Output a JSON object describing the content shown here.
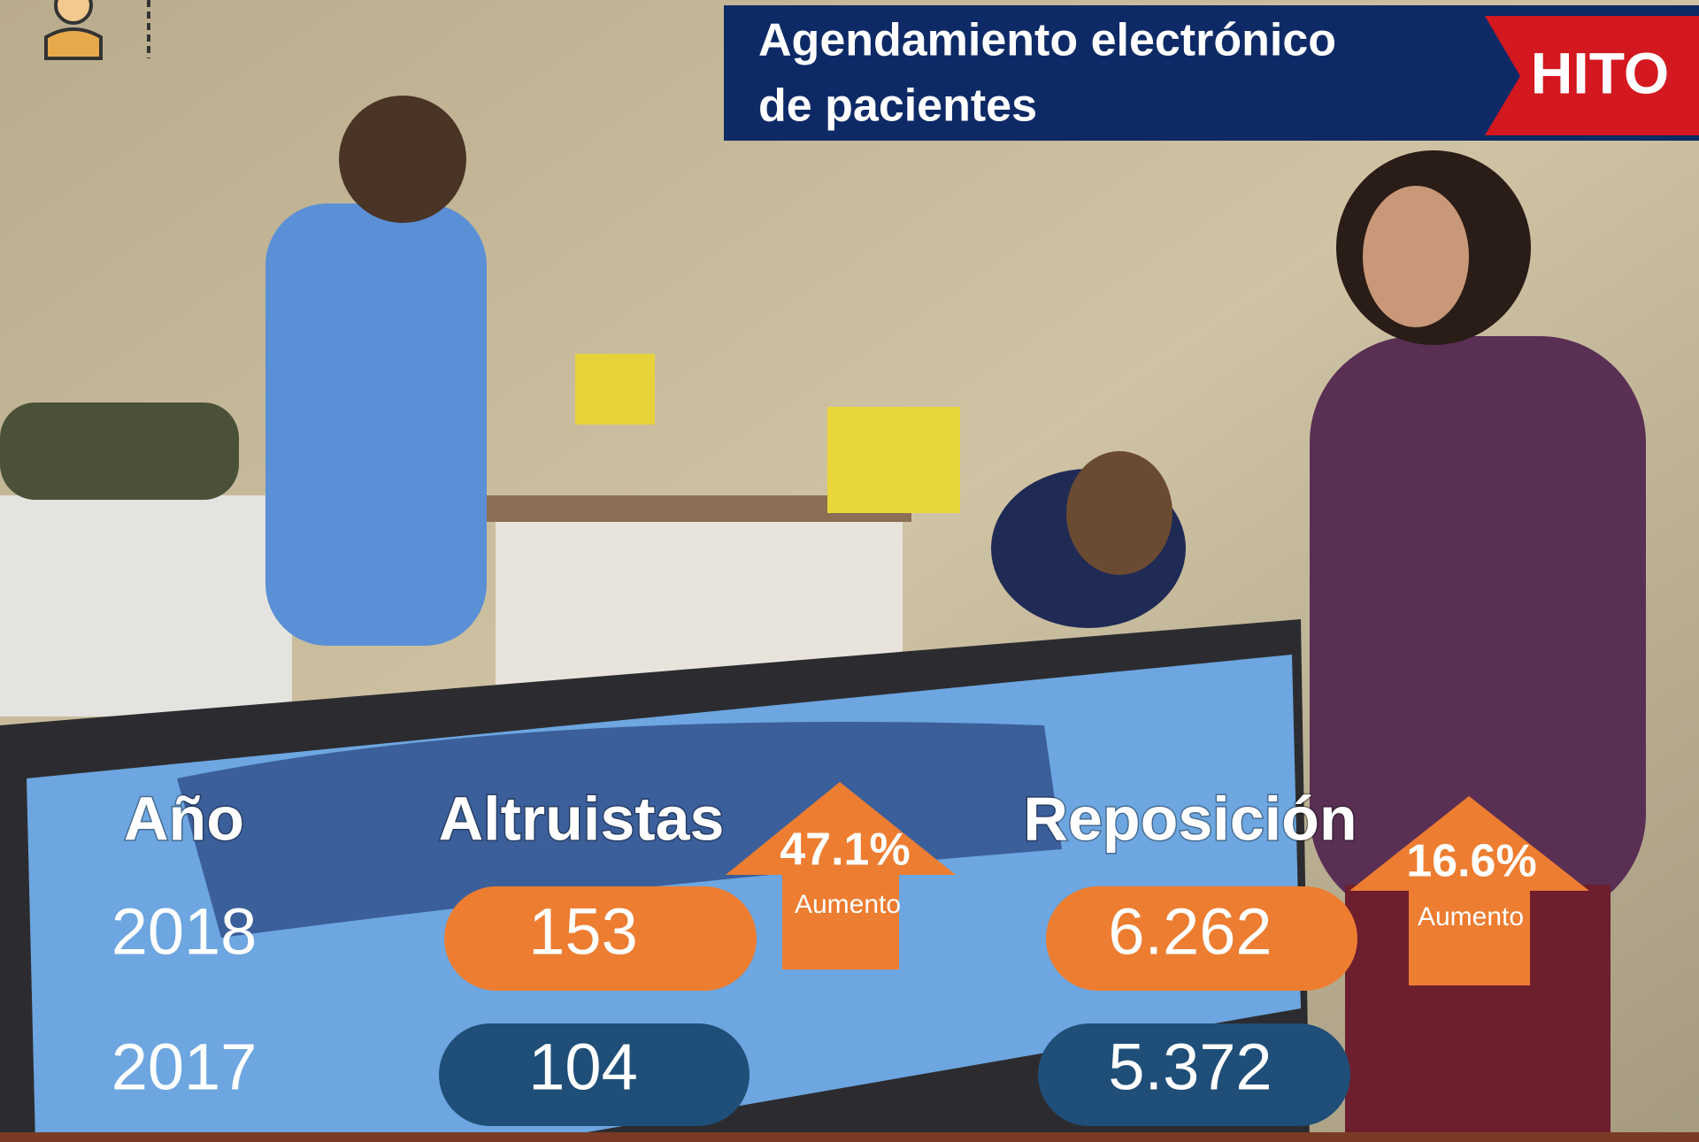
{
  "header": {
    "title_lines": [
      "Agendamiento electrónico",
      "de pacientes"
    ],
    "badge": "HITO"
  },
  "table": {
    "headers": [
      "Año",
      "Altruistas",
      "Reposición"
    ],
    "rows": [
      [
        "2018",
        "153",
        "6.262"
      ],
      [
        "2017",
        "104",
        "5.372"
      ]
    ]
  },
  "increases": [
    {
      "value": "47.1%",
      "label": "Aumento"
    },
    {
      "value": "16.6%",
      "label": "Aumento"
    }
  ]
}
